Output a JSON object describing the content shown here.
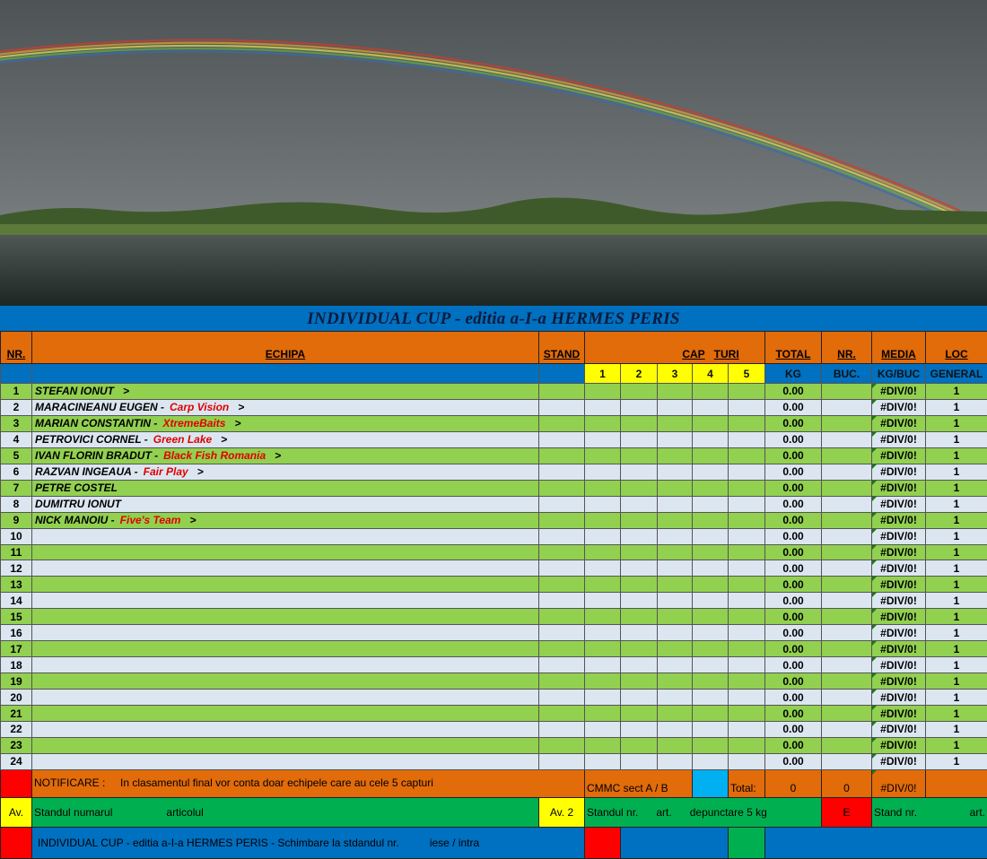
{
  "title": "INDIVIDUAL CUP - editia a-I-a HERMES PERIS",
  "colors": {
    "header_orange": "#e26b0a",
    "header_blue": "#0070c0",
    "row_green": "#92d050",
    "row_light": "#dce6f1",
    "team_red": "#e00000",
    "capture_yellow": "#ffff00"
  },
  "headers": {
    "nr": "NR.",
    "echipa": "ECHIPA",
    "stand": "STAND",
    "cap": "CAP",
    "turi": "TURI",
    "total": "TOTAL",
    "nr2": "NR.",
    "media": "MEDIA",
    "loc": "LOC",
    "rounds": [
      "1",
      "2",
      "3",
      "4",
      "5"
    ],
    "kg": "KG",
    "buc": "BUC.",
    "kgbuc": "KG/BUC",
    "general": "GENERAL"
  },
  "rows": [
    {
      "nr": "1",
      "name": "STEFAN IONUT",
      "team": "",
      "arrow": ">",
      "total": "0.00",
      "media": "#DIV/0!",
      "loc": "1"
    },
    {
      "nr": "2",
      "name": "MARACINEANU EUGEN -",
      "team": "Carp Vision",
      "arrow": ">",
      "total": "0.00",
      "media": "#DIV/0!",
      "loc": "1"
    },
    {
      "nr": "3",
      "name": "MARIAN  CONSTANTIN  -",
      "team": "XtremeBaits",
      "arrow": ">",
      "total": "0.00",
      "media": "#DIV/0!",
      "loc": "1"
    },
    {
      "nr": "4",
      "name": "PETROVICI  CORNEL -",
      "team": "Green Lake",
      "arrow": ">",
      "total": "0.00",
      "media": "#DIV/0!",
      "loc": "1"
    },
    {
      "nr": "5",
      "name": "IVAN FLORIN BRADUT -",
      "team": "Black Fish Romania",
      "arrow": ">",
      "total": "0.00",
      "media": "#DIV/0!",
      "loc": "1"
    },
    {
      "nr": "6",
      "name": "RAZVAN  INGEAUA -",
      "team": "Fair Play",
      "arrow": ">",
      "total": "0.00",
      "media": "#DIV/0!",
      "loc": "1"
    },
    {
      "nr": "7",
      "name": "PETRE  COSTEL",
      "team": "",
      "arrow": "",
      "total": "0.00",
      "media": "#DIV/0!",
      "loc": "1"
    },
    {
      "nr": "8",
      "name": "DUMITRU  IONUT",
      "team": "",
      "arrow": "",
      "total": "0.00",
      "media": "#DIV/0!",
      "loc": "1"
    },
    {
      "nr": "9",
      "name": "NICK  MANOIU -",
      "team": "Five's Team",
      "arrow": ">",
      "total": "0.00",
      "media": "#DIV/0!",
      "loc": "1"
    },
    {
      "nr": "10",
      "name": "",
      "team": "",
      "arrow": "",
      "total": "0.00",
      "media": "#DIV/0!",
      "loc": "1"
    },
    {
      "nr": "11",
      "name": "",
      "team": "",
      "arrow": "",
      "total": "0.00",
      "media": "#DIV/0!",
      "loc": "1"
    },
    {
      "nr": "12",
      "name": "",
      "team": "",
      "arrow": "",
      "total": "0.00",
      "media": "#DIV/0!",
      "loc": "1"
    },
    {
      "nr": "13",
      "name": "",
      "team": "",
      "arrow": "",
      "total": "0.00",
      "media": "#DIV/0!",
      "loc": "1"
    },
    {
      "nr": "14",
      "name": "",
      "team": "",
      "arrow": "",
      "total": "0.00",
      "media": "#DIV/0!",
      "loc": "1"
    },
    {
      "nr": "15",
      "name": "",
      "team": "",
      "arrow": "",
      "total": "0.00",
      "media": "#DIV/0!",
      "loc": "1"
    },
    {
      "nr": "16",
      "name": "",
      "team": "",
      "arrow": "",
      "total": "0.00",
      "media": "#DIV/0!",
      "loc": "1"
    },
    {
      "nr": "17",
      "name": "",
      "team": "",
      "arrow": "",
      "total": "0.00",
      "media": "#DIV/0!",
      "loc": "1"
    },
    {
      "nr": "18",
      "name": "",
      "team": "",
      "arrow": "",
      "total": "0.00",
      "media": "#DIV/0!",
      "loc": "1"
    },
    {
      "nr": "19",
      "name": "",
      "team": "",
      "arrow": "",
      "total": "0.00",
      "media": "#DIV/0!",
      "loc": "1"
    },
    {
      "nr": "20",
      "name": "",
      "team": "",
      "arrow": "",
      "total": "0.00",
      "media": "#DIV/0!",
      "loc": "1"
    },
    {
      "nr": "21",
      "name": "",
      "team": "",
      "arrow": "",
      "total": "0.00",
      "media": "#DIV/0!",
      "loc": "1"
    },
    {
      "nr": "22",
      "name": "",
      "team": "",
      "arrow": "",
      "total": "0.00",
      "media": "#DIV/0!",
      "loc": "1"
    },
    {
      "nr": "23",
      "name": "",
      "team": "",
      "arrow": "",
      "total": "0.00",
      "media": "#DIV/0!",
      "loc": "1"
    },
    {
      "nr": "24",
      "name": "",
      "team": "",
      "arrow": "",
      "total": "0.00",
      "media": "#DIV/0!",
      "loc": "1"
    }
  ],
  "footer": {
    "notice_label": "NOTIFICARE :",
    "notice_text": "In clasamentul final vor conta doar echipele care au cele 5 capturi",
    "cmmc": "CMMC sect  A / B",
    "total_label": "Total:",
    "total_kg": "0",
    "total_buc": "0",
    "total_media": "#DIV/0!",
    "av1": "Av.",
    "av1_a": "Standul numarul",
    "av1_b": "articolul",
    "av2": "Av. 2",
    "av2_a": "Standul  nr.",
    "av2_b": "art.",
    "av2_c": "depunctare 5 kg",
    "e": "E",
    "e_a": "Stand nr.",
    "e_b": "art.",
    "change_text": "INDIVIDUAL CUP - editia a-I-a HERMES PERIS - Schimbare la stdandul  nr.",
    "change_b": "iese / intra"
  }
}
